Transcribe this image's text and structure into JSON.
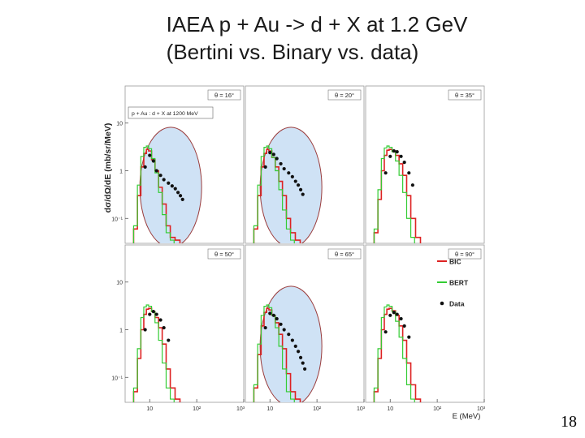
{
  "slide": {
    "title_line1": "IAEA   p + Au -> d + X  at 1.2 GeV",
    "title_line2": "(Bertini vs. Binary vs. data)",
    "page_number": "18"
  },
  "colors": {
    "bic": "#dd2222",
    "bert": "#33cc33",
    "data": "#111111",
    "ellipse_fill": "#cfe2f5",
    "ellipse_stroke": "#9a3c3c"
  },
  "chart_data": {
    "type": "line",
    "ylabel": "dσ/dΩ/dE (mb/sr/MeV)",
    "xlabel": "E (MeV)",
    "x_scale": "log",
    "y_scale": "log",
    "xlim": [
      3,
      1000
    ],
    "ylim": [
      0.03,
      60
    ],
    "x_ticks": [
      "10",
      "10²",
      "10³"
    ],
    "y_ticks": [
      "10",
      "1",
      "10⁻¹"
    ],
    "inset_label": "p + Au  :  d + X at 1200 MeV",
    "legend": [
      "BIC",
      "BERT",
      "Data"
    ],
    "panels": [
      {
        "angle": "θ = 16°",
        "highlight": true,
        "BIC": {
          "x": [
            5,
            6,
            7,
            8,
            9,
            10,
            12,
            14,
            17,
            20,
            25,
            30,
            40
          ],
          "y": [
            0.06,
            0.3,
            1.2,
            2.3,
            2.8,
            2.6,
            1.7,
            1.0,
            0.45,
            0.2,
            0.07,
            0.04,
            0.035
          ]
        },
        "BERT": {
          "x": [
            5,
            6,
            7,
            8,
            9,
            10,
            12,
            14,
            17,
            20,
            25,
            30
          ],
          "y": [
            0.07,
            0.5,
            2.0,
            3.1,
            3.3,
            2.9,
            1.8,
            0.9,
            0.35,
            0.12,
            0.05,
            0.035
          ]
        },
        "Data": {
          "x": [
            8,
            10,
            12,
            14,
            17,
            20,
            25,
            30,
            35,
            40,
            45,
            50
          ],
          "y": [
            1.2,
            2.1,
            1.6,
            1.0,
            0.8,
            0.65,
            0.55,
            0.48,
            0.42,
            0.35,
            0.3,
            0.25
          ]
        }
      },
      {
        "angle": "θ = 20°",
        "highlight": true,
        "BIC": {
          "x": [
            5,
            6,
            7,
            8,
            9,
            10,
            12,
            14,
            17,
            20,
            25,
            30,
            40
          ],
          "y": [
            0.06,
            0.3,
            1.2,
            2.3,
            2.8,
            2.6,
            1.9,
            1.2,
            0.6,
            0.3,
            0.1,
            0.05,
            0.035
          ]
        },
        "BERT": {
          "x": [
            5,
            6,
            7,
            8,
            9,
            10,
            12,
            14,
            17,
            20,
            25,
            30
          ],
          "y": [
            0.07,
            0.5,
            2.0,
            3.1,
            3.3,
            2.9,
            1.9,
            1.0,
            0.4,
            0.15,
            0.06,
            0.035
          ]
        },
        "Data": {
          "x": [
            8,
            10,
            12,
            14,
            17,
            20,
            25,
            30,
            35,
            40,
            45,
            50
          ],
          "y": [
            1.2,
            2.4,
            2.2,
            1.8,
            1.4,
            1.1,
            0.9,
            0.75,
            0.6,
            0.5,
            0.4,
            0.32
          ]
        }
      },
      {
        "angle": "θ = 35°",
        "highlight": false,
        "BIC": {
          "x": [
            5,
            6,
            7,
            8,
            9,
            10,
            12,
            14,
            17,
            20,
            25,
            30,
            40
          ],
          "y": [
            0.05,
            0.25,
            1.0,
            2.1,
            2.7,
            2.8,
            2.6,
            2.1,
            1.4,
            0.8,
            0.3,
            0.1,
            0.04
          ]
        },
        "BERT": {
          "x": [
            5,
            6,
            7,
            8,
            9,
            10,
            12,
            14,
            17,
            20,
            25,
            30
          ],
          "y": [
            0.06,
            0.4,
            1.8,
            3.0,
            3.3,
            3.1,
            2.5,
            1.6,
            0.8,
            0.35,
            0.1,
            0.04
          ]
        },
        "Data": {
          "x": [
            8,
            10,
            12,
            14,
            17,
            20,
            25,
            30
          ],
          "y": [
            0.9,
            2.0,
            2.6,
            2.5,
            2.0,
            1.5,
            0.9,
            0.5
          ]
        }
      },
      {
        "angle": "θ = 50°",
        "highlight": false,
        "BIC": {
          "x": [
            5,
            6,
            7,
            8,
            9,
            10,
            12,
            14,
            17,
            20,
            25,
            30,
            40
          ],
          "y": [
            0.05,
            0.25,
            1.0,
            2.1,
            2.7,
            2.8,
            2.4,
            1.8,
            1.1,
            0.5,
            0.15,
            0.06,
            0.035
          ]
        },
        "BERT": {
          "x": [
            5,
            6,
            7,
            8,
            9,
            10,
            12,
            14,
            17,
            20,
            25,
            30
          ],
          "y": [
            0.06,
            0.4,
            1.8,
            3.0,
            3.3,
            3.1,
            2.4,
            1.4,
            0.6,
            0.2,
            0.06,
            0.035
          ]
        },
        "Data": {
          "x": [
            8,
            10,
            12,
            14,
            17,
            20,
            25
          ],
          "y": [
            1.0,
            2.1,
            2.4,
            2.1,
            1.6,
            1.1,
            0.6
          ]
        }
      },
      {
        "angle": "θ = 65°",
        "highlight": true,
        "BIC": {
          "x": [
            5,
            6,
            7,
            8,
            9,
            10,
            12,
            14,
            17,
            20,
            25,
            30,
            40
          ],
          "y": [
            0.06,
            0.3,
            1.2,
            2.3,
            2.8,
            2.6,
            2.0,
            1.4,
            0.8,
            0.4,
            0.12,
            0.05,
            0.035
          ]
        },
        "BERT": {
          "x": [
            5,
            6,
            7,
            8,
            9,
            10,
            12,
            14,
            17,
            20,
            25,
            30
          ],
          "y": [
            0.07,
            0.5,
            2.0,
            3.1,
            3.3,
            2.9,
            2.0,
            1.1,
            0.45,
            0.15,
            0.05,
            0.035
          ]
        },
        "Data": {
          "x": [
            8,
            10,
            12,
            14,
            17,
            20,
            25,
            30,
            35,
            40,
            45,
            50,
            55
          ],
          "y": [
            1.1,
            2.2,
            2.0,
            1.7,
            1.3,
            1.0,
            0.8,
            0.6,
            0.45,
            0.35,
            0.26,
            0.2,
            0.15
          ]
        }
      },
      {
        "angle": "θ = 90°",
        "highlight": false,
        "BIC": {
          "x": [
            5,
            6,
            7,
            8,
            9,
            10,
            12,
            14,
            17,
            20,
            25,
            30,
            40
          ],
          "y": [
            0.05,
            0.25,
            1.0,
            2.1,
            2.7,
            2.8,
            2.5,
            2.0,
            1.2,
            0.6,
            0.2,
            0.07,
            0.035
          ]
        },
        "BERT": {
          "x": [
            5,
            6,
            7,
            8,
            9,
            10,
            12,
            14,
            17,
            20,
            25,
            30
          ],
          "y": [
            0.06,
            0.4,
            1.8,
            3.0,
            3.3,
            3.1,
            2.4,
            1.5,
            0.7,
            0.25,
            0.07,
            0.035
          ]
        },
        "Data": {
          "x": [
            8,
            10,
            12,
            14,
            17,
            20,
            25
          ],
          "y": [
            0.9,
            2.0,
            2.3,
            2.1,
            1.7,
            1.2,
            0.7
          ]
        }
      }
    ]
  }
}
